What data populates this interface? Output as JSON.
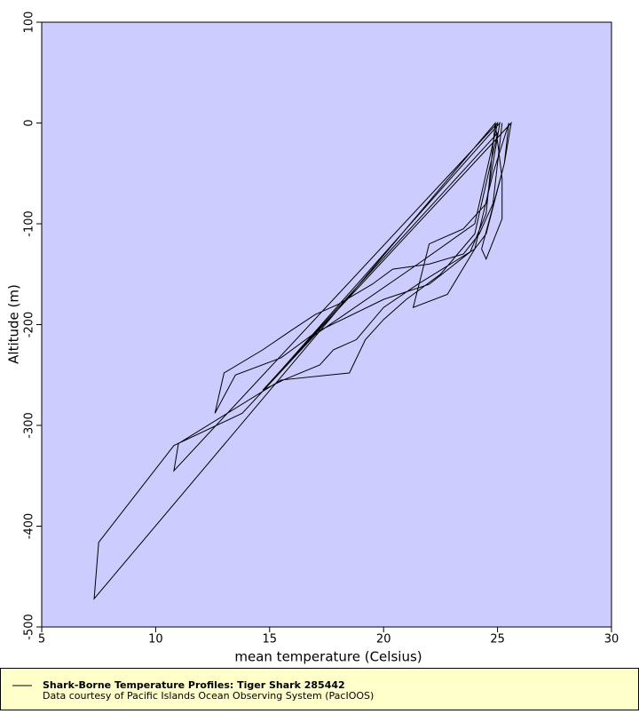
{
  "chart_data": {
    "type": "line",
    "title": "Shark-Borne Temperature Profiles: Tiger Shark 285442",
    "subtitle": "Data courtesy of Pacific Islands Ocean Observing System (PacIOOS)",
    "x_label": "mean temperature (Celsius)",
    "y_label": "Altitude (m)",
    "background": "#ccccff",
    "legend_background": "#ffffcc",
    "xlim": [
      5,
      30
    ],
    "xticks": [
      5,
      10,
      15,
      20,
      25,
      30
    ],
    "ylim": [
      -500,
      100
    ],
    "yticks": [
      -500,
      -400,
      -300,
      -200,
      -100,
      0,
      100
    ],
    "series": [
      {
        "name": "Shark-Borne Temperature Profiles: Tiger Shark 285442",
        "color": "#000000",
        "x": [
          25.2,
          25.0,
          24.8,
          24.2,
          23.5,
          22,
          20.4,
          19.5,
          18,
          17,
          16,
          14.7,
          13,
          12.6,
          13.5,
          15.5,
          17,
          20,
          22,
          23.8,
          24.5,
          24.9,
          7.3,
          7.5,
          10.8,
          13.8,
          17,
          21.5,
          24,
          25,
          10.8,
          11,
          15.5,
          18.5,
          19.2,
          20,
          21,
          22.5,
          24,
          25,
          14.7,
          15.6,
          17.2,
          17.8,
          18.8,
          20,
          21.5,
          24,
          24.8,
          25.5,
          25.3,
          24.5,
          24,
          22.8,
          21.3,
          22,
          23.5,
          24.5,
          25.1,
          15,
          25.6,
          25.3,
          24.3,
          24.5,
          25.2,
          25.2,
          24.9
        ],
        "values": [
          0,
          -40,
          -80,
          -110,
          -130,
          -140,
          -145,
          -160,
          -180,
          -190,
          -205,
          -225,
          -248,
          -288,
          -250,
          -233,
          -208,
          -175,
          -160,
          -128,
          -90,
          0,
          -472,
          -416,
          -320,
          -288,
          -210,
          -140,
          -100,
          0,
          -345,
          -318,
          -255,
          -248,
          -215,
          -195,
          -175,
          -150,
          -110,
          -10,
          -265,
          -255,
          -240,
          -225,
          -215,
          -183,
          -160,
          -125,
          -50,
          0,
          -40,
          -110,
          -125,
          -170,
          -183,
          -120,
          -105,
          -80,
          0,
          -258,
          0,
          -40,
          -125,
          -135,
          -95,
          -55,
          0
        ]
      }
    ]
  }
}
